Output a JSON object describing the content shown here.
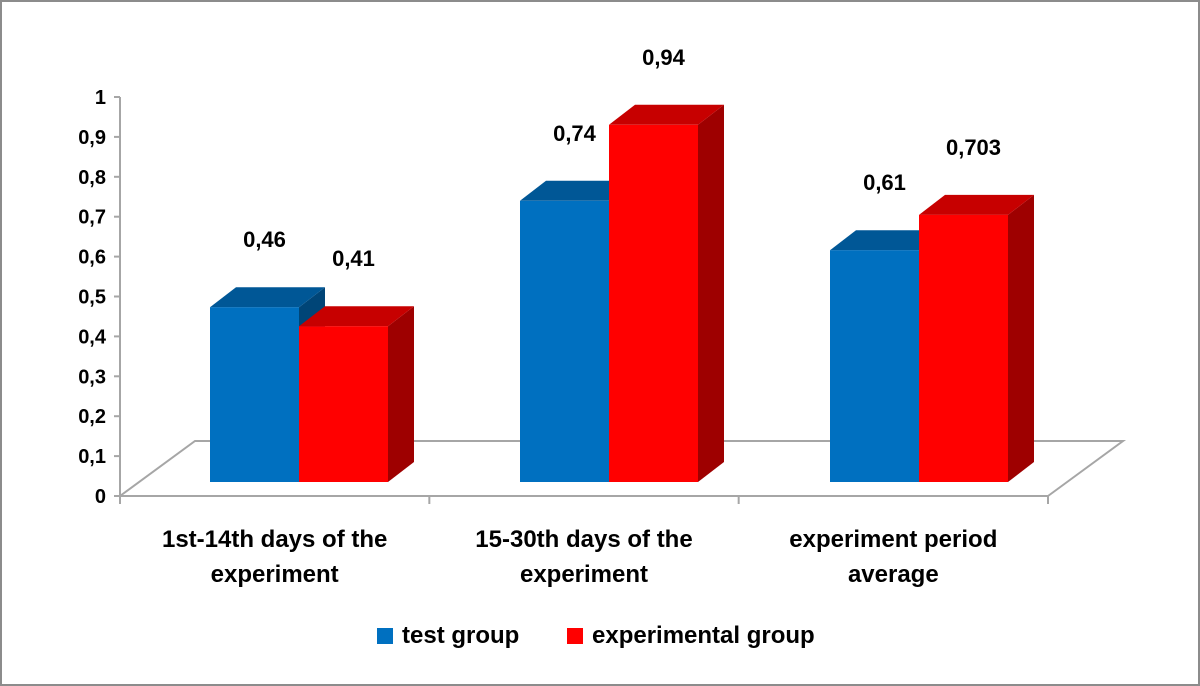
{
  "chart_data": {
    "type": "bar",
    "categories": [
      [
        "1st-14th days of the",
        "experiment"
      ],
      [
        "15-30th days of the",
        "experiment"
      ],
      [
        "experiment period",
        "average"
      ]
    ],
    "series": [
      {
        "name": "test group",
        "values": [
          0.46,
          0.74,
          0.61
        ],
        "labels": [
          "0,46",
          "0,74",
          "0,61"
        ],
        "color": "#0070C0"
      },
      {
        "name": "experimental group",
        "values": [
          0.41,
          0.94,
          0.703
        ],
        "labels": [
          "0,41",
          "0,94",
          "0,703"
        ],
        "color": "#FF0000"
      }
    ],
    "yticks": [
      "0",
      "0,1",
      "0,2",
      "0,3",
      "0,4",
      "0,5",
      "0,6",
      "0,7",
      "0,8",
      "0,9",
      "1"
    ],
    "ylim": [
      0,
      1
    ],
    "grid": false,
    "legend_position": "bottom",
    "style": "3d-clustered-column"
  }
}
